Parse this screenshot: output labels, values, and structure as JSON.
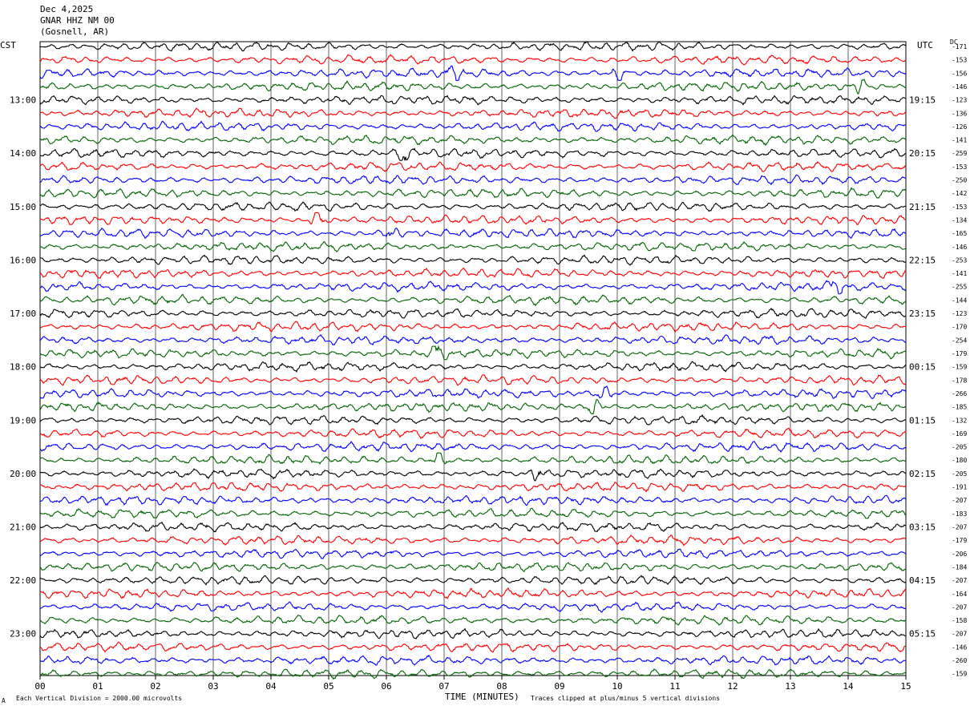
{
  "header": {
    "date": "Dec 4,2025",
    "station": "GNAR HHZ NM 00",
    "location": "(Gosnell, AR)"
  },
  "left_timezone": "CST",
  "right_timezone": "UTC",
  "dc_header": "DC",
  "footer": {
    "scale_note": "Each Vertical Division = 2000.00 microvolts",
    "clip_note": "Traces clipped at plus/minus 5 vertical divisions",
    "corner_mark": "A"
  },
  "chart_data": {
    "type": "line",
    "title": "",
    "xlabel": "TIME (MINUTES)",
    "ylabel": "",
    "xlim": [
      0,
      15
    ],
    "x_ticks": [
      "00",
      "01",
      "02",
      "03",
      "04",
      "05",
      "06",
      "07",
      "08",
      "09",
      "10",
      "11",
      "12",
      "13",
      "14",
      "15"
    ],
    "trace_colors": [
      "#000000",
      "#ff0000",
      "#0000ff",
      "#006400"
    ],
    "trace_count": 48,
    "minutes_per_trace": 15,
    "left_time_labels": [
      "13:00",
      "14:00",
      "15:00",
      "16:00",
      "17:00",
      "18:00",
      "19:00",
      "20:00",
      "21:00",
      "22:00",
      "23:00"
    ],
    "right_time_labels": [
      "19:15",
      "20:15",
      "21:15",
      "22:15",
      "23:15",
      "00:15",
      "01:15",
      "02:15",
      "03:15",
      "04:15",
      "05:15"
    ],
    "dc_offsets": [
      "-171",
      "-153",
      "-156",
      "-146",
      "-123",
      "-136",
      "-126",
      "-141",
      "-259",
      "-153",
      "-250",
      "-142",
      "-153",
      "-134",
      "-165",
      "-146",
      "-253",
      "-141",
      "-255",
      "-144",
      "-123",
      "-170",
      "-254",
      "-179",
      "-159",
      "-178",
      "-266",
      "-185",
      "-132",
      "-169",
      "-205",
      "-180",
      "-205",
      "-191",
      "-207",
      "-183",
      "-207",
      "-179",
      "-206",
      "-184",
      "-207",
      "-164",
      "-207",
      "-158",
      "-207",
      "-146",
      "-260",
      "-159"
    ],
    "notable_events": [
      {
        "trace": 2,
        "minute": 7.2
      },
      {
        "trace": 2,
        "minute": 10.0
      },
      {
        "trace": 3,
        "minute": 14.2
      },
      {
        "trace": 8,
        "minute": 6.3
      },
      {
        "trace": 13,
        "minute": 4.8
      },
      {
        "trace": 14,
        "minute": 6.1
      },
      {
        "trace": 18,
        "minute": 13.8
      },
      {
        "trace": 23,
        "minute": 6.9
      },
      {
        "trace": 26,
        "minute": 9.8
      },
      {
        "trace": 27,
        "minute": 9.6
      },
      {
        "trace": 31,
        "minute": 6.9
      },
      {
        "trace": 32,
        "minute": 8.6
      }
    ]
  }
}
